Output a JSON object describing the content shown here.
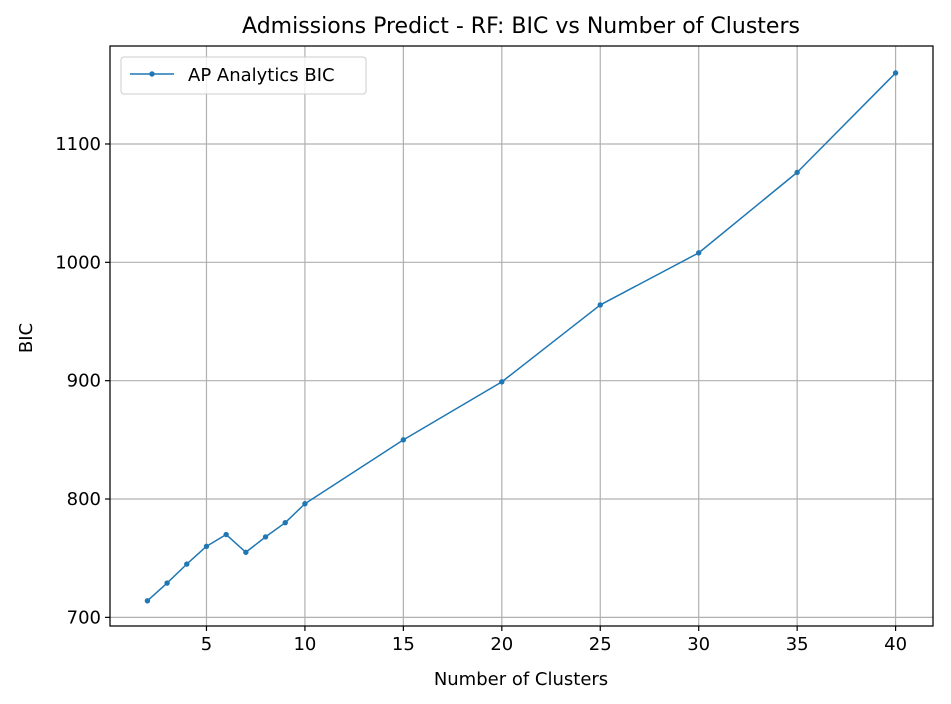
{
  "chart_data": {
    "type": "line",
    "title": "Admissions Predict - RF: BIC vs Number of Clusters",
    "xlabel": "Number of Clusters",
    "ylabel": "BIC",
    "xlim": [
      0.1,
      41.9
    ],
    "ylim": [
      692.7,
      1182.8
    ],
    "xticks": [
      5,
      10,
      15,
      20,
      25,
      30,
      35,
      40
    ],
    "yticks": [
      700,
      800,
      900,
      1000,
      1100
    ],
    "grid": true,
    "legend_position": "upper-left",
    "series": [
      {
        "name": "AP Analytics BIC",
        "color": "#1f77b4",
        "marker": "point",
        "x": [
          2,
          3,
          4,
          5,
          6,
          7,
          8,
          9,
          10,
          15,
          20,
          25,
          30,
          35,
          40
        ],
        "y": [
          714,
          729,
          745,
          760,
          770,
          755,
          768,
          780,
          796,
          850,
          899,
          964,
          1008,
          1076,
          1160
        ]
      }
    ]
  }
}
